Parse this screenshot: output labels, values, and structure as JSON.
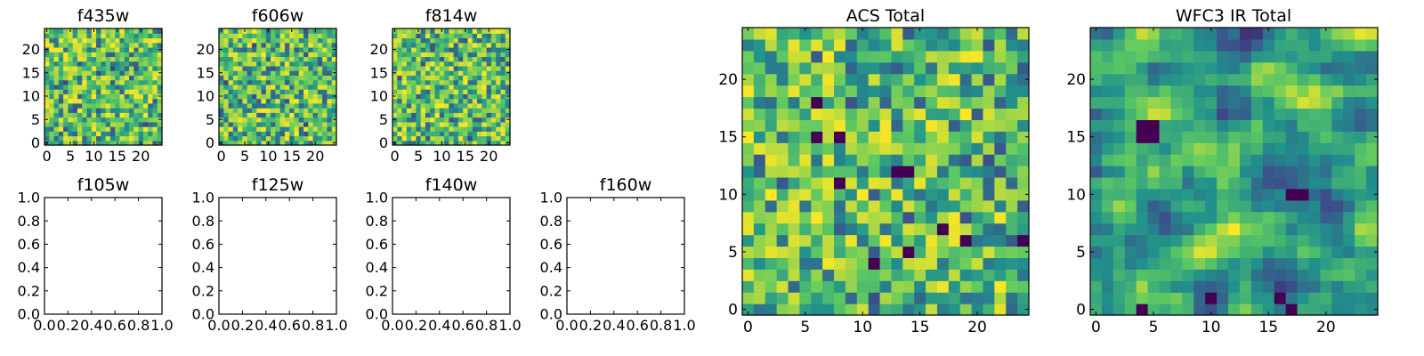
{
  "colormap": [
    "#440154",
    "#3b528b",
    "#21918c",
    "#5ec962",
    "#fde725"
  ],
  "chart_data": [
    {
      "name": "f435w",
      "type": "heatmap",
      "title": "f435w",
      "grid_size": 25,
      "value_range": [
        0,
        1
      ],
      "xticks": [
        "0",
        "5",
        "10",
        "15",
        "20"
      ],
      "yticks": [
        "0",
        "5",
        "10",
        "15",
        "20"
      ],
      "tick_values": [
        0,
        5,
        10,
        15,
        20
      ],
      "seed": 11,
      "smooth": 0
    },
    {
      "name": "f606w",
      "type": "heatmap",
      "title": "f606w",
      "grid_size": 25,
      "value_range": [
        0,
        1
      ],
      "xticks": [
        "0",
        "5",
        "10",
        "15",
        "20"
      ],
      "yticks": [
        "0",
        "5",
        "10",
        "15",
        "20"
      ],
      "tick_values": [
        0,
        5,
        10,
        15,
        20
      ],
      "seed": 23,
      "smooth": 0
    },
    {
      "name": "f814w",
      "type": "heatmap",
      "title": "f814w",
      "grid_size": 25,
      "value_range": [
        0,
        1
      ],
      "xticks": [
        "0",
        "5",
        "10",
        "15",
        "20"
      ],
      "yticks": [
        "0",
        "5",
        "10",
        "15",
        "20"
      ],
      "tick_values": [
        0,
        5,
        10,
        15,
        20
      ],
      "seed": 37,
      "smooth": 0
    },
    {
      "name": "f105w",
      "type": "empty",
      "title": "f105w",
      "xlim": [
        0,
        1
      ],
      "ylim": [
        0,
        1
      ],
      "xticks": [
        "0.0",
        "0.2",
        "0.4",
        "0.6",
        "0.8",
        "1.0"
      ],
      "yticks": [
        "0.0",
        "0.2",
        "0.4",
        "0.6",
        "0.8",
        "1.0"
      ],
      "tick_values": [
        0,
        0.2,
        0.4,
        0.6,
        0.8,
        1.0
      ]
    },
    {
      "name": "f125w",
      "type": "empty",
      "title": "f125w",
      "xlim": [
        0,
        1
      ],
      "ylim": [
        0,
        1
      ],
      "xticks": [
        "0.0",
        "0.2",
        "0.4",
        "0.6",
        "0.8",
        "1.0"
      ],
      "yticks": [
        "0.0",
        "0.2",
        "0.4",
        "0.6",
        "0.8",
        "1.0"
      ],
      "tick_values": [
        0,
        0.2,
        0.4,
        0.6,
        0.8,
        1.0
      ]
    },
    {
      "name": "f140w",
      "type": "empty",
      "title": "f140w",
      "xlim": [
        0,
        1
      ],
      "ylim": [
        0,
        1
      ],
      "xticks": [
        "0.0",
        "0.2",
        "0.4",
        "0.6",
        "0.8",
        "1.0"
      ],
      "yticks": [
        "0.0",
        "0.2",
        "0.4",
        "0.6",
        "0.8",
        "1.0"
      ],
      "tick_values": [
        0,
        0.2,
        0.4,
        0.6,
        0.8,
        1.0
      ]
    },
    {
      "name": "f160w",
      "type": "empty",
      "title": "f160w",
      "xlim": [
        0,
        1
      ],
      "ylim": [
        0,
        1
      ],
      "xticks": [
        "0.0",
        "0.2",
        "0.4",
        "0.6",
        "0.8",
        "1.0"
      ],
      "yticks": [
        "0.0",
        "0.2",
        "0.4",
        "0.6",
        "0.8",
        "1.0"
      ],
      "tick_values": [
        0,
        0.2,
        0.4,
        0.6,
        0.8,
        1.0
      ]
    },
    {
      "name": "acs-total",
      "type": "heatmap",
      "title": "ACS Total",
      "grid_size": 25,
      "value_range": [
        0,
        1
      ],
      "xticks": [
        "0",
        "5",
        "10",
        "15",
        "20"
      ],
      "yticks": [
        "0",
        "5",
        "10",
        "15",
        "20"
      ],
      "tick_values": [
        0,
        5,
        10,
        15,
        20
      ],
      "seed": 53,
      "smooth": 0,
      "dark_cells": [
        [
          8,
          15
        ],
        [
          6,
          15
        ],
        [
          13,
          12
        ],
        [
          14,
          12
        ],
        [
          8,
          11
        ],
        [
          14,
          5
        ],
        [
          17,
          7
        ],
        [
          19,
          6
        ],
        [
          11,
          4
        ],
        [
          6,
          18
        ],
        [
          24,
          6
        ]
      ]
    },
    {
      "name": "wfc3-ir-total",
      "type": "heatmap",
      "title": "WFC3 IR Total",
      "grid_size": 25,
      "value_range": [
        0,
        1
      ],
      "xticks": [
        "0",
        "5",
        "10",
        "15",
        "20"
      ],
      "yticks": [
        "0",
        "5",
        "10",
        "15",
        "20"
      ],
      "tick_values": [
        0,
        5,
        10,
        15,
        20
      ],
      "seed": 71,
      "smooth": 1,
      "dark_cells": [
        [
          4,
          16
        ],
        [
          5,
          16
        ],
        [
          4,
          15
        ],
        [
          5,
          15
        ],
        [
          17,
          10
        ],
        [
          18,
          10
        ],
        [
          16,
          1
        ],
        [
          10,
          1
        ],
        [
          4,
          0
        ],
        [
          17,
          0
        ]
      ]
    }
  ]
}
